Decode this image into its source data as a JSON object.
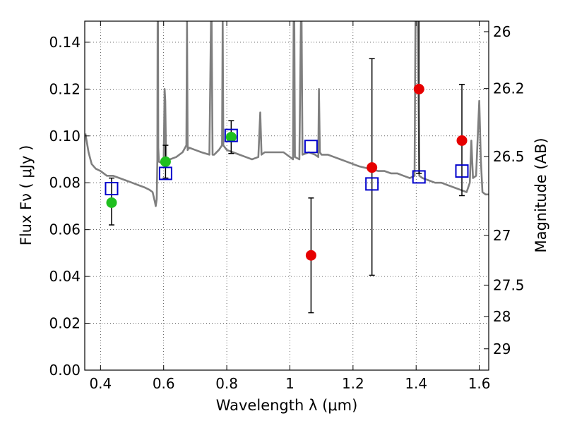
{
  "chart_data": {
    "type": "scatter",
    "xlabel": "Wavelength  λ (μm)",
    "ylabel": "Flux  Fν  ( μJy )",
    "y2label": "Magnitude (AB)",
    "xlim": [
      0.35,
      1.63
    ],
    "ylim": [
      0.0,
      0.149
    ],
    "grid": true,
    "x_ticks": [
      {
        "v": 0.4,
        "label": "0.4"
      },
      {
        "v": 0.6,
        "label": "0.6"
      },
      {
        "v": 0.8,
        "label": "0.8"
      },
      {
        "v": 1.0,
        "label": "1"
      },
      {
        "v": 1.2,
        "label": "1.2"
      },
      {
        "v": 1.4,
        "label": "1.4"
      },
      {
        "v": 1.6,
        "label": "1.6"
      }
    ],
    "y_ticks": [
      {
        "v": 0.0,
        "label": "0.00"
      },
      {
        "v": 0.02,
        "label": "0.02"
      },
      {
        "v": 0.04,
        "label": "0.04"
      },
      {
        "v": 0.06,
        "label": "0.06"
      },
      {
        "v": 0.08,
        "label": "0.08"
      },
      {
        "v": 0.1,
        "label": "0.10"
      },
      {
        "v": 0.12,
        "label": "0.12"
      },
      {
        "v": 0.14,
        "label": "0.14"
      }
    ],
    "mag_ticks": [
      {
        "v": 0.1445,
        "label": "26"
      },
      {
        "v": 0.1202,
        "label": "26.2"
      },
      {
        "v": 0.0912,
        "label": "26.5"
      },
      {
        "v": 0.0575,
        "label": "27"
      },
      {
        "v": 0.0363,
        "label": "27.5"
      },
      {
        "v": 0.0229,
        "label": "28"
      },
      {
        "v": 0.0091,
        "label": "29"
      }
    ],
    "series": [
      {
        "kind": "model_sed",
        "color": "#7f7f7f",
        "x": [
          0.352,
          0.362,
          0.372,
          0.385,
          0.4,
          0.42,
          0.44,
          0.46,
          0.48,
          0.5,
          0.52,
          0.54,
          0.555,
          0.565,
          0.572,
          0.575,
          0.578,
          0.58,
          0.581,
          0.582,
          0.583,
          0.585,
          0.6,
          0.603,
          0.605,
          0.608,
          0.62,
          0.64,
          0.66,
          0.672,
          0.674,
          0.676,
          0.68,
          0.7,
          0.72,
          0.745,
          0.75,
          0.752,
          0.755,
          0.76,
          0.775,
          0.785,
          0.787,
          0.789,
          0.8,
          0.82,
          0.84,
          0.86,
          0.88,
          0.9,
          0.906,
          0.91,
          0.92,
          0.94,
          0.96,
          0.98,
          0.99,
          1.0,
          1.01,
          1.012,
          1.014,
          1.016,
          1.03,
          1.035,
          1.037,
          1.04,
          1.06,
          1.08,
          1.09,
          1.092,
          1.095,
          1.1,
          1.12,
          1.14,
          1.16,
          1.18,
          1.2,
          1.22,
          1.25,
          1.28,
          1.3,
          1.32,
          1.34,
          1.36,
          1.38,
          1.395,
          1.398,
          1.4,
          1.405,
          1.41,
          1.42,
          1.44,
          1.46,
          1.48,
          1.5,
          1.52,
          1.54,
          1.56,
          1.57,
          1.575,
          1.58,
          1.59,
          1.6,
          1.605,
          1.61,
          1.62,
          1.63
        ],
        "y": [
          0.101,
          0.093,
          0.088,
          0.086,
          0.085,
          0.083,
          0.083,
          0.082,
          0.081,
          0.08,
          0.079,
          0.078,
          0.077,
          0.076,
          0.072,
          0.07,
          0.073,
          0.09,
          0.15,
          0.15,
          0.095,
          0.089,
          0.088,
          0.12,
          0.115,
          0.087,
          0.09,
          0.091,
          0.093,
          0.096,
          0.15,
          0.094,
          0.095,
          0.094,
          0.093,
          0.092,
          0.15,
          0.15,
          0.092,
          0.092,
          0.094,
          0.096,
          0.15,
          0.096,
          0.094,
          0.093,
          0.092,
          0.091,
          0.09,
          0.091,
          0.11,
          0.092,
          0.093,
          0.093,
          0.093,
          0.093,
          0.092,
          0.091,
          0.09,
          0.15,
          0.15,
          0.091,
          0.09,
          0.15,
          0.15,
          0.092,
          0.093,
          0.092,
          0.091,
          0.12,
          0.093,
          0.092,
          0.092,
          0.091,
          0.09,
          0.089,
          0.088,
          0.087,
          0.086,
          0.085,
          0.085,
          0.084,
          0.084,
          0.083,
          0.082,
          0.083,
          0.15,
          0.15,
          0.15,
          0.083,
          0.082,
          0.081,
          0.08,
          0.08,
          0.079,
          0.078,
          0.077,
          0.076,
          0.08,
          0.098,
          0.082,
          0.083,
          0.115,
          0.09,
          0.076,
          0.075,
          0.075
        ]
      },
      {
        "kind": "points",
        "name": "",
        "marker": "circle",
        "color": "#1fbf1f",
        "points": [
          {
            "x": 0.435,
            "y": 0.0715,
            "yerr_low": 0.062,
            "yerr_high": 0.082
          },
          {
            "x": 0.606,
            "y": 0.089,
            "yerr_low": 0.082,
            "yerr_high": 0.096
          },
          {
            "x": 0.814,
            "y": 0.0995,
            "yerr_low": 0.0925,
            "yerr_high": 0.1065
          }
        ]
      },
      {
        "kind": "points",
        "name": "",
        "marker": "circle",
        "color": "#e60000",
        "points": [
          {
            "x": 1.067,
            "y": 0.049,
            "yerr_low": 0.0245,
            "yerr_high": 0.0735
          },
          {
            "x": 1.26,
            "y": 0.0865,
            "yerr_low": 0.0405,
            "yerr_high": 0.133
          },
          {
            "x": 1.409,
            "y": 0.12,
            "yerr_low": 0.084,
            "yerr_high": 0.156
          },
          {
            "x": 1.545,
            "y": 0.098,
            "yerr_low": 0.0745,
            "yerr_high": 0.122
          }
        ]
      },
      {
        "kind": "points",
        "name": "",
        "marker": "open-square",
        "color": "#0000cc",
        "points": [
          {
            "x": 0.435,
            "y": 0.0775
          },
          {
            "x": 0.606,
            "y": 0.084
          },
          {
            "x": 0.814,
            "y": 0.1002
          },
          {
            "x": 1.067,
            "y": 0.0955
          },
          {
            "x": 1.26,
            "y": 0.0795
          },
          {
            "x": 1.409,
            "y": 0.0825
          },
          {
            "x": 1.545,
            "y": 0.085
          }
        ]
      }
    ]
  }
}
